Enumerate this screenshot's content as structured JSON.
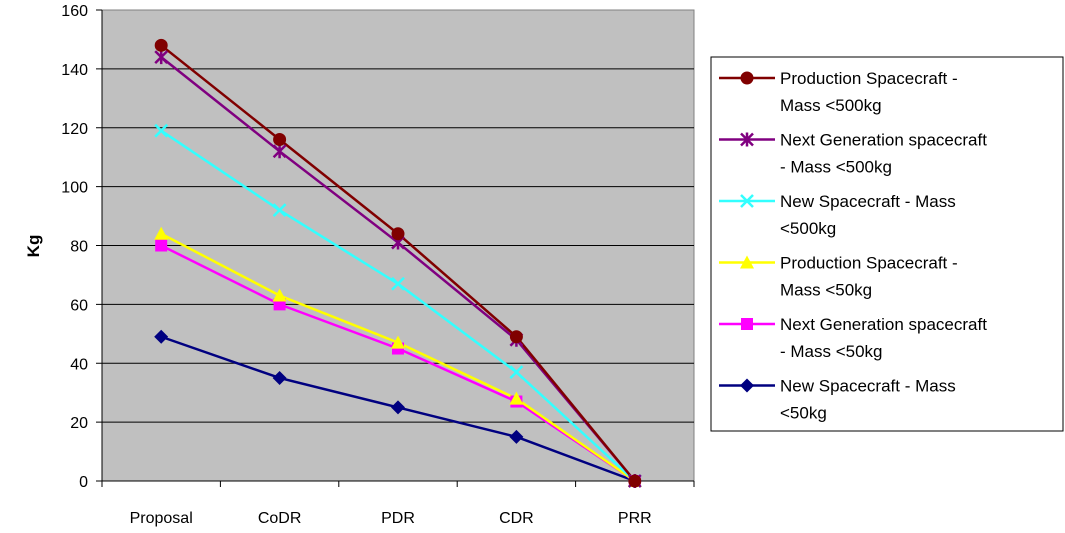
{
  "chart_data": {
    "type": "line",
    "categories": [
      "Proposal",
      "CoDR",
      "PDR",
      "CDR",
      "PRR"
    ],
    "ylabel": "Kg",
    "xlabel": "",
    "ylim": [
      0,
      160
    ],
    "yticks": [
      0,
      20,
      40,
      60,
      80,
      100,
      120,
      140,
      160
    ],
    "grid": true,
    "plot_background": "#C0C0C0",
    "legend_position": "right",
    "series": [
      {
        "name": "Production Spacecraft - Mass <500kg",
        "legend_lines": [
          "Production Spacecraft -",
          "Mass <500kg"
        ],
        "values": [
          148,
          116,
          84,
          49,
          0
        ],
        "color": "#800000",
        "marker": "circle"
      },
      {
        "name": "Next Generation spacecraft - Mass <500kg",
        "legend_lines": [
          "Next Generation spacecraft",
          "- Mass <500kg"
        ],
        "values": [
          144,
          112,
          81,
          48,
          0
        ],
        "color": "#800080",
        "marker": "asterisk"
      },
      {
        "name": "New Spacecraft - Mass <500kg",
        "legend_lines": [
          "New Spacecraft - Mass",
          "<500kg"
        ],
        "values": [
          119,
          92,
          67,
          37,
          0
        ],
        "color": "#33FFFF",
        "marker": "x"
      },
      {
        "name": "Production Spacecraft - Mass <50kg",
        "legend_lines": [
          "Production Spacecraft -",
          "Mass <50kg"
        ],
        "values": [
          84,
          63,
          47,
          28,
          0
        ],
        "color": "#FFFF00",
        "marker": "triangle"
      },
      {
        "name": "Next Generation spacecraft - Mass <50kg",
        "legend_lines": [
          "Next Generation spacecraft",
          "- Mass <50kg"
        ],
        "values": [
          80,
          60,
          45,
          27,
          0
        ],
        "color": "#FF00FF",
        "marker": "square"
      },
      {
        "name": "New Spacecraft - Mass <50kg",
        "legend_lines": [
          "New Spacecraft - Mass",
          "<50kg"
        ],
        "values": [
          49,
          35,
          25,
          15,
          0
        ],
        "color": "#000080",
        "marker": "diamond"
      }
    ]
  }
}
